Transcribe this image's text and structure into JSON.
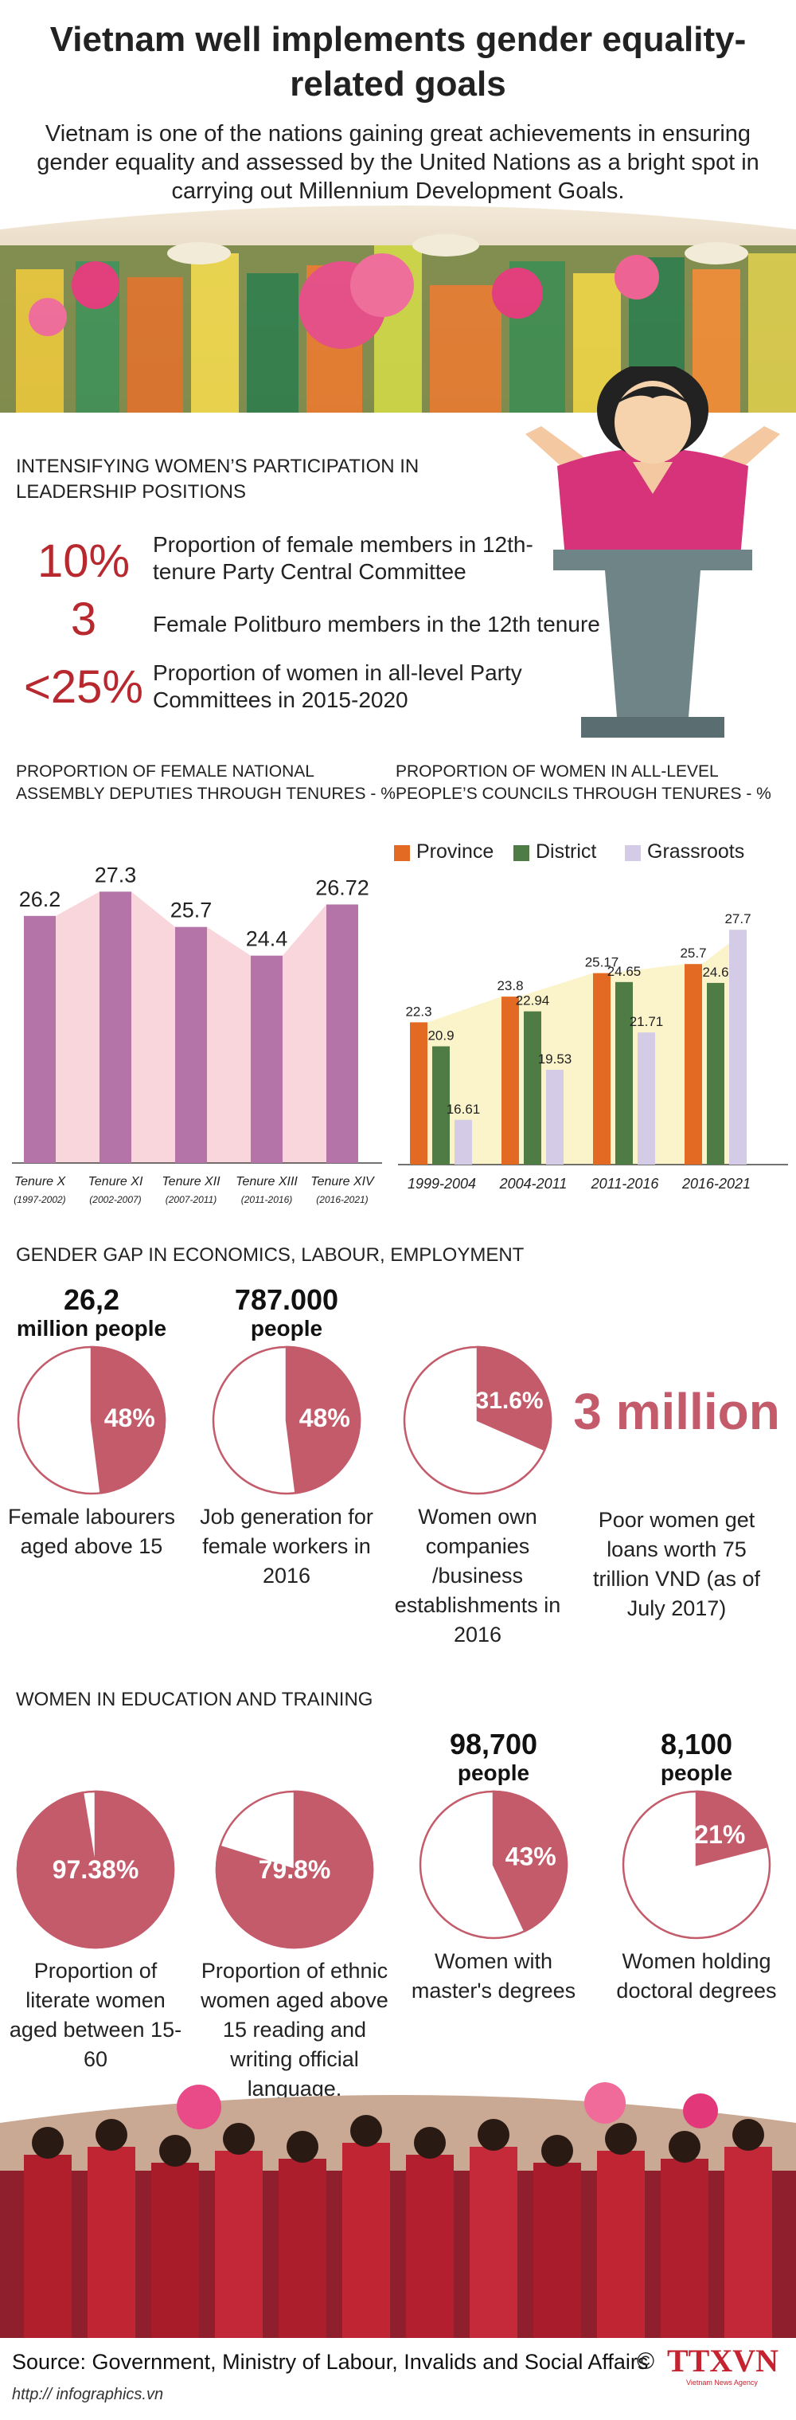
{
  "title": "Vietnam well implements gender equality-related goals",
  "intro": "Vietnam is one of the nations gaining great achievements in ensuring gender equality and assessed by the United Nations as a bright spot in carrying out Millennium Development Goals.",
  "leadership": {
    "heading": "INTENSIFYING WOMEN’S PARTICIPATION IN LEADERSHIP POSITIONS",
    "stats": [
      {
        "value": "10%",
        "label": "Proportion of female members in 12th-tenure Party Central Committee"
      },
      {
        "value": "3",
        "label": "Female Politburo members in the 12th tenure"
      },
      {
        "value": "<25%",
        "label": "Proportion of women in all-level Party Committees in 2015-2020"
      }
    ]
  },
  "chart_assembly": {
    "heading": "PROPORTION OF FEMALE NATIONAL ASSEMBLY DEPUTIES THROUGH TENURES - %",
    "chart_data": {
      "type": "bar",
      "categories": [
        "Tenure X",
        "Tenure XI",
        "Tenure XII",
        "Tenure XIII",
        "Tenure XIV"
      ],
      "subcategories": [
        "(1997-2002)",
        "(2002-2007)",
        "(2007-2011)",
        "(2011-2016)",
        "(2016-2021)"
      ],
      "values": [
        26.2,
        27.3,
        25.7,
        24.4,
        26.72
      ],
      "labels": [
        "26.2",
        "27.3",
        "25.7",
        "24.4",
        "26.72"
      ],
      "color": "#b574a8",
      "area_color": "#f8d6dc"
    }
  },
  "chart_councils": {
    "heading": "PROPORTION OF WOMEN IN ALL-LEVEL PEOPLE’S COUNCILS THROUGH TENURES - %",
    "legend": [
      "Province",
      "District",
      "Grassroots"
    ],
    "chart_data": {
      "type": "bar",
      "categories": [
        "1999-2004",
        "2004-2011",
        "2011-2016",
        "2016-2021"
      ],
      "series": [
        {
          "name": "Province",
          "values": [
            22.3,
            23.8,
            25.17,
            25.7
          ],
          "labels": [
            "22.3",
            "23.8",
            "25.17",
            "25.7"
          ],
          "color": "#e36a22"
        },
        {
          "name": "District",
          "values": [
            20.9,
            22.94,
            24.65,
            24.6
          ],
          "labels": [
            "20.9",
            "22.94",
            "24.65",
            "24.6"
          ],
          "color": "#4f7c45"
        },
        {
          "name": "Grassroots",
          "values": [
            16.61,
            19.53,
            21.71,
            27.7
          ],
          "labels": [
            "16.61",
            "19.53",
            "21.71",
            "27.7"
          ],
          "color": "#d4cbe6"
        }
      ]
    }
  },
  "economics": {
    "heading": "GENDER GAP IN ECONOMICS, LABOUR, EMPLOYMENT",
    "items": [
      {
        "top_value": "26,2",
        "top_unit": "million people",
        "percent": 48,
        "percent_label": "48%",
        "caption": "Female labourers aged above 15"
      },
      {
        "top_value": "787.000",
        "top_unit": "people",
        "percent": 48,
        "percent_label": "48%",
        "caption": "Job generation for female workers in 2016"
      },
      {
        "top_value": "",
        "top_unit": "",
        "percent": 31.6,
        "percent_label": "31.6%",
        "caption": "Women own companies /business establishments in 2016"
      }
    ],
    "loans": {
      "value": "3 million",
      "caption": "Poor women get loans worth 75 trillion VND (as of July 2017)"
    }
  },
  "education": {
    "heading": "WOMEN IN EDUCATION AND TRAINING",
    "items": [
      {
        "top_value": "",
        "top_unit": "",
        "percent": 97.38,
        "percent_label": "97.38%",
        "caption": "Proportion of literate women aged between 15-60"
      },
      {
        "top_value": "",
        "top_unit": "",
        "percent": 79.8,
        "percent_label": "79.8%",
        "caption": "Proportion of ethnic women aged above 15 reading and writing official language, Vietnamese"
      },
      {
        "top_value": "98,700",
        "top_unit": "people",
        "percent": 43,
        "percent_label": "43%",
        "caption": "Women with master's degrees"
      },
      {
        "top_value": "8,100",
        "top_unit": "people",
        "percent": 21,
        "percent_label": "21%",
        "caption": "Women holding doctoral degrees"
      }
    ]
  },
  "footer": {
    "source": "Source: Government, Ministry of Labour, Invalids and Social Affairs",
    "site": "http:// infographics.vn",
    "logo_text": "TTXVN",
    "logo_sub": "Vietnam News Agency",
    "copyright": "©"
  },
  "colors": {
    "accent": "#c45b6b",
    "dark_red": "#b8292f",
    "pie_fill": "#c45b6b"
  }
}
